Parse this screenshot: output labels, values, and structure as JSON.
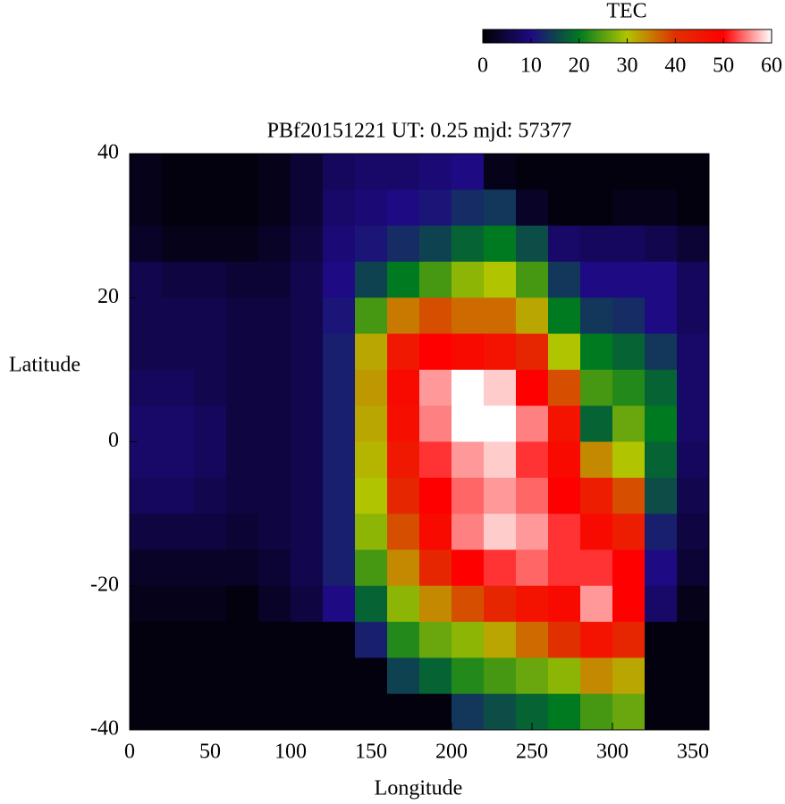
{
  "chart_data": {
    "type": "heatmap",
    "title": "PBf20151221  UT: 0.25  mjd: 57377",
    "xlabel": "Longitude",
    "ylabel": "Latitude",
    "colorbar_label": "TEC",
    "clim": [
      0,
      60
    ],
    "cticks": [
      0,
      10,
      20,
      30,
      40,
      50,
      60
    ],
    "colormap": [
      "#000000",
      "#1e0a82",
      "#007a20",
      "#b0c400",
      "#e03000",
      "#ff0000",
      "#ffffff"
    ],
    "xlim": [
      0,
      360
    ],
    "xticks": [
      0,
      50,
      100,
      150,
      200,
      250,
      300,
      350
    ],
    "ylim": [
      -40,
      40
    ],
    "yticks": [
      -40,
      -20,
      0,
      20,
      40
    ],
    "x": [
      10,
      30,
      50,
      70,
      90,
      110,
      130,
      150,
      170,
      190,
      210,
      230,
      250,
      270,
      290,
      310,
      330,
      350
    ],
    "y": [
      37.5,
      32.5,
      27.5,
      22.5,
      17.5,
      12.5,
      7.5,
      2.5,
      -2.5,
      -7.5,
      -12.5,
      -17.5,
      -22.5,
      -27.5,
      -32.5,
      -37.5
    ],
    "z": [
      [
        2,
        1,
        1,
        1,
        2,
        4,
        7,
        8,
        8,
        9,
        10,
        2,
        1,
        1,
        1,
        1,
        1,
        1
      ],
      [
        2,
        1,
        1,
        1,
        2,
        4,
        8,
        9,
        10,
        11,
        13,
        14,
        3,
        1,
        1,
        2,
        2,
        1
      ],
      [
        3,
        2,
        2,
        2,
        3,
        5,
        9,
        11,
        13,
        15,
        18,
        20,
        16,
        8,
        7,
        7,
        6,
        4
      ],
      [
        6,
        5,
        5,
        4,
        4,
        6,
        10,
        15,
        20,
        24,
        28,
        30,
        24,
        14,
        10,
        10,
        10,
        7
      ],
      [
        6,
        6,
        6,
        5,
        5,
        6,
        11,
        24,
        35,
        38,
        36,
        36,
        32,
        20,
        14,
        13,
        10,
        7
      ],
      [
        6,
        6,
        6,
        5,
        5,
        6,
        12,
        32,
        45,
        50,
        48,
        46,
        42,
        30,
        20,
        18,
        14,
        8
      ],
      [
        7,
        7,
        6,
        5,
        5,
        6,
        12,
        33,
        48,
        56,
        60,
        58,
        50,
        38,
        24,
        22,
        18,
        8
      ],
      [
        8,
        8,
        7,
        5,
        5,
        6,
        12,
        32,
        47,
        55,
        60,
        60,
        55,
        46,
        18,
        26,
        20,
        8
      ],
      [
        8,
        8,
        7,
        5,
        5,
        6,
        12,
        31,
        45,
        52,
        56,
        58,
        52,
        48,
        34,
        30,
        18,
        7
      ],
      [
        7,
        7,
        6,
        5,
        5,
        6,
        12,
        30,
        42,
        50,
        54,
        56,
        54,
        50,
        44,
        38,
        16,
        6
      ],
      [
        5,
        5,
        5,
        4,
        5,
        6,
        12,
        28,
        38,
        48,
        55,
        58,
        56,
        52,
        48,
        44,
        12,
        5
      ],
      [
        3,
        3,
        3,
        3,
        4,
        6,
        12,
        24,
        34,
        42,
        50,
        52,
        54,
        52,
        52,
        50,
        10,
        4
      ],
      [
        2,
        2,
        2,
        1,
        3,
        5,
        10,
        18,
        28,
        34,
        38,
        42,
        46,
        48,
        56,
        50,
        8,
        2
      ],
      [
        1,
        1,
        1,
        1,
        1,
        1,
        1,
        12,
        22,
        26,
        28,
        32,
        36,
        40,
        46,
        42,
        1,
        1
      ],
      [
        1,
        1,
        1,
        1,
        1,
        1,
        1,
        1,
        15,
        18,
        22,
        24,
        26,
        28,
        34,
        32,
        1,
        1
      ],
      [
        1,
        1,
        1,
        1,
        1,
        1,
        1,
        1,
        1,
        1,
        14,
        16,
        18,
        20,
        24,
        26,
        1,
        1
      ]
    ]
  }
}
